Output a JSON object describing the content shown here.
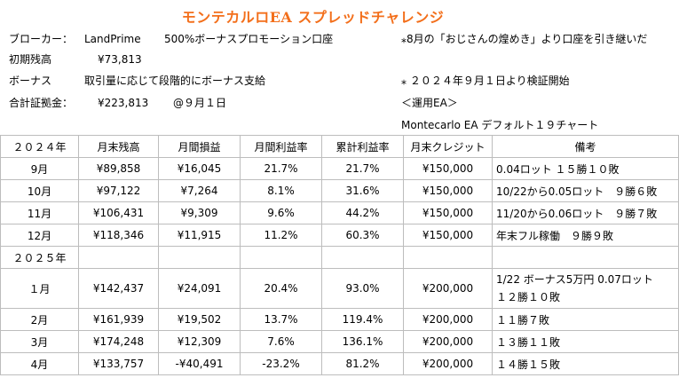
{
  "title": "モンテカルロEA スプレッドチャレンジ",
  "info": {
    "broker_label": "ブローカー：",
    "broker_name": "LandPrime",
    "broker_account": "500%ボーナスプロモーション口座",
    "initial_label": "初期残高",
    "initial_value": "¥73,813",
    "bonus_label": "ボーナス",
    "bonus_text": "取引量に応じて段階的にボーナス支給",
    "margin_label": "合計証拠金：",
    "margin_value": "¥223,813",
    "margin_date": "@９月１日",
    "note1": "⁎8月の「おじさんの煌めき」より口座を引き継いだ",
    "note2": "⁎ ２０２４年９月１日より検証開始",
    "ea_label": "＜運用EA＞",
    "ea_name": "Montecarlo EA デフォルト１９チャート"
  },
  "table": {
    "headers": [
      "２０２４年",
      "月末残高",
      "月間損益",
      "月間利益率",
      "累計利益率",
      "月末クレジット",
      "備考"
    ],
    "rows_2024": [
      {
        "month": "9月",
        "balance": "¥89,858",
        "pl": "¥16,045",
        "rate": "21.7%",
        "cum": "21.7%",
        "credit": "¥150,000",
        "note": "0.04ロット １５勝１０敗",
        "note2": ""
      },
      {
        "month": "10月",
        "balance": "¥97,122",
        "pl": "¥7,264",
        "rate": "8.1%",
        "cum": "31.6%",
        "credit": "¥150,000",
        "note": "10/22から0.05ロット　９勝６敗",
        "note2": ""
      },
      {
        "month": "11月",
        "balance": "¥106,431",
        "pl": "¥9,309",
        "rate": "9.6%",
        "cum": "44.2%",
        "credit": "¥150,000",
        "note": "11/20から0.06ロット　９勝７敗",
        "note2": ""
      },
      {
        "month": "12月",
        "balance": "¥118,346",
        "pl": "¥11,915",
        "rate": "11.2%",
        "cum": "60.3%",
        "credit": "¥150,000",
        "note": "年末フル稼働　９勝９敗",
        "note2": ""
      }
    ],
    "year2025": "２０２５年",
    "rows_2025": [
      {
        "month": "１月",
        "balance": "¥142,437",
        "pl": "¥24,091",
        "rate": "20.4%",
        "cum": "93.0%",
        "credit": "¥200,000",
        "note": "1/22 ボーナス5万円 0.07ロット",
        "note2": "１２勝１０敗"
      },
      {
        "month": "2月",
        "balance": "¥161,939",
        "pl": "¥19,502",
        "rate": "13.7%",
        "cum": "119.4%",
        "credit": "¥200,000",
        "note": "１１勝７敗",
        "note2": ""
      },
      {
        "month": "3月",
        "balance": "¥174,248",
        "pl": "¥12,309",
        "rate": "7.6%",
        "cum": "136.1%",
        "credit": "¥200,000",
        "note": "１３勝１１敗",
        "note2": ""
      },
      {
        "month": "4月",
        "balance": "¥133,757",
        "pl": "-¥40,491",
        "rate": "-23.2%",
        "cum": "81.2%",
        "credit": "¥200,000",
        "note": "１４勝１５敗",
        "note2": ""
      }
    ]
  }
}
